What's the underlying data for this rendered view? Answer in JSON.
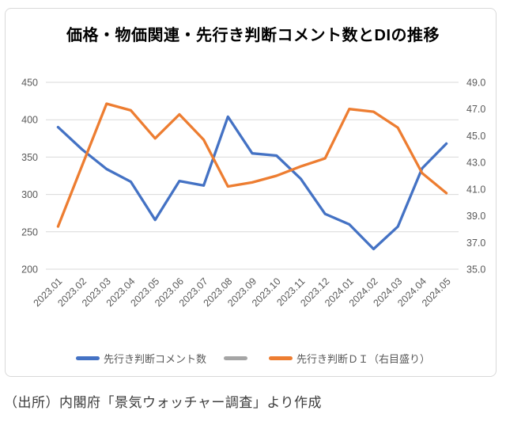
{
  "chart": {
    "title": "価格・物価関連・先行き判断コメント数とDIの推移",
    "caption": "（出所）内閣府「景気ウォッチャー調査」より作成"
  },
  "chart_data": {
    "type": "line",
    "title": "価格・物価関連・先行き判断コメント数とDIの推移",
    "categories": [
      "2023.01",
      "2023.02",
      "2023.03",
      "2023.04",
      "2023.05",
      "2023.06",
      "2023.07",
      "2023.08",
      "2023.09",
      "2023.10",
      "2023.11",
      "2023.12",
      "2024.01",
      "2024.02",
      "2024.03",
      "2024.04",
      "2024.05"
    ],
    "series": [
      {
        "name": "先行き判断コメント数",
        "axis": "left",
        "color": "#4472C4",
        "values": [
          390,
          360,
          334,
          317,
          266,
          318,
          312,
          404,
          355,
          352,
          321,
          274,
          260,
          227,
          257,
          335,
          368
        ]
      },
      {
        "name": "",
        "axis": "left",
        "color": "#A5A5A5",
        "values": []
      },
      {
        "name": "先行き判断ＤＩ（右目盛り）",
        "axis": "right",
        "color": "#ED7D31",
        "values": [
          38.2,
          42.8,
          47.4,
          46.9,
          44.8,
          46.6,
          44.7,
          41.2,
          41.5,
          42.0,
          42.7,
          43.3,
          47.0,
          46.8,
          45.6,
          42.2,
          40.7
        ]
      }
    ],
    "left_axis": {
      "min": 200,
      "max": 450,
      "ticks": [
        "450",
        "400",
        "350",
        "300",
        "250",
        "200"
      ]
    },
    "right_axis": {
      "min": 35.0,
      "max": 49.0,
      "ticks": [
        "49.0",
        "47.0",
        "45.0",
        "43.0",
        "41.0",
        "39.0",
        "37.0",
        "35.0"
      ]
    },
    "grid": true,
    "legend_position": "bottom",
    "colors": {
      "gridline": "#D9D9D9",
      "axis_text": "#595959",
      "title_text": "#000000",
      "caption_text": "#3d3d3d",
      "frame_border": "#D9D9D9"
    }
  }
}
